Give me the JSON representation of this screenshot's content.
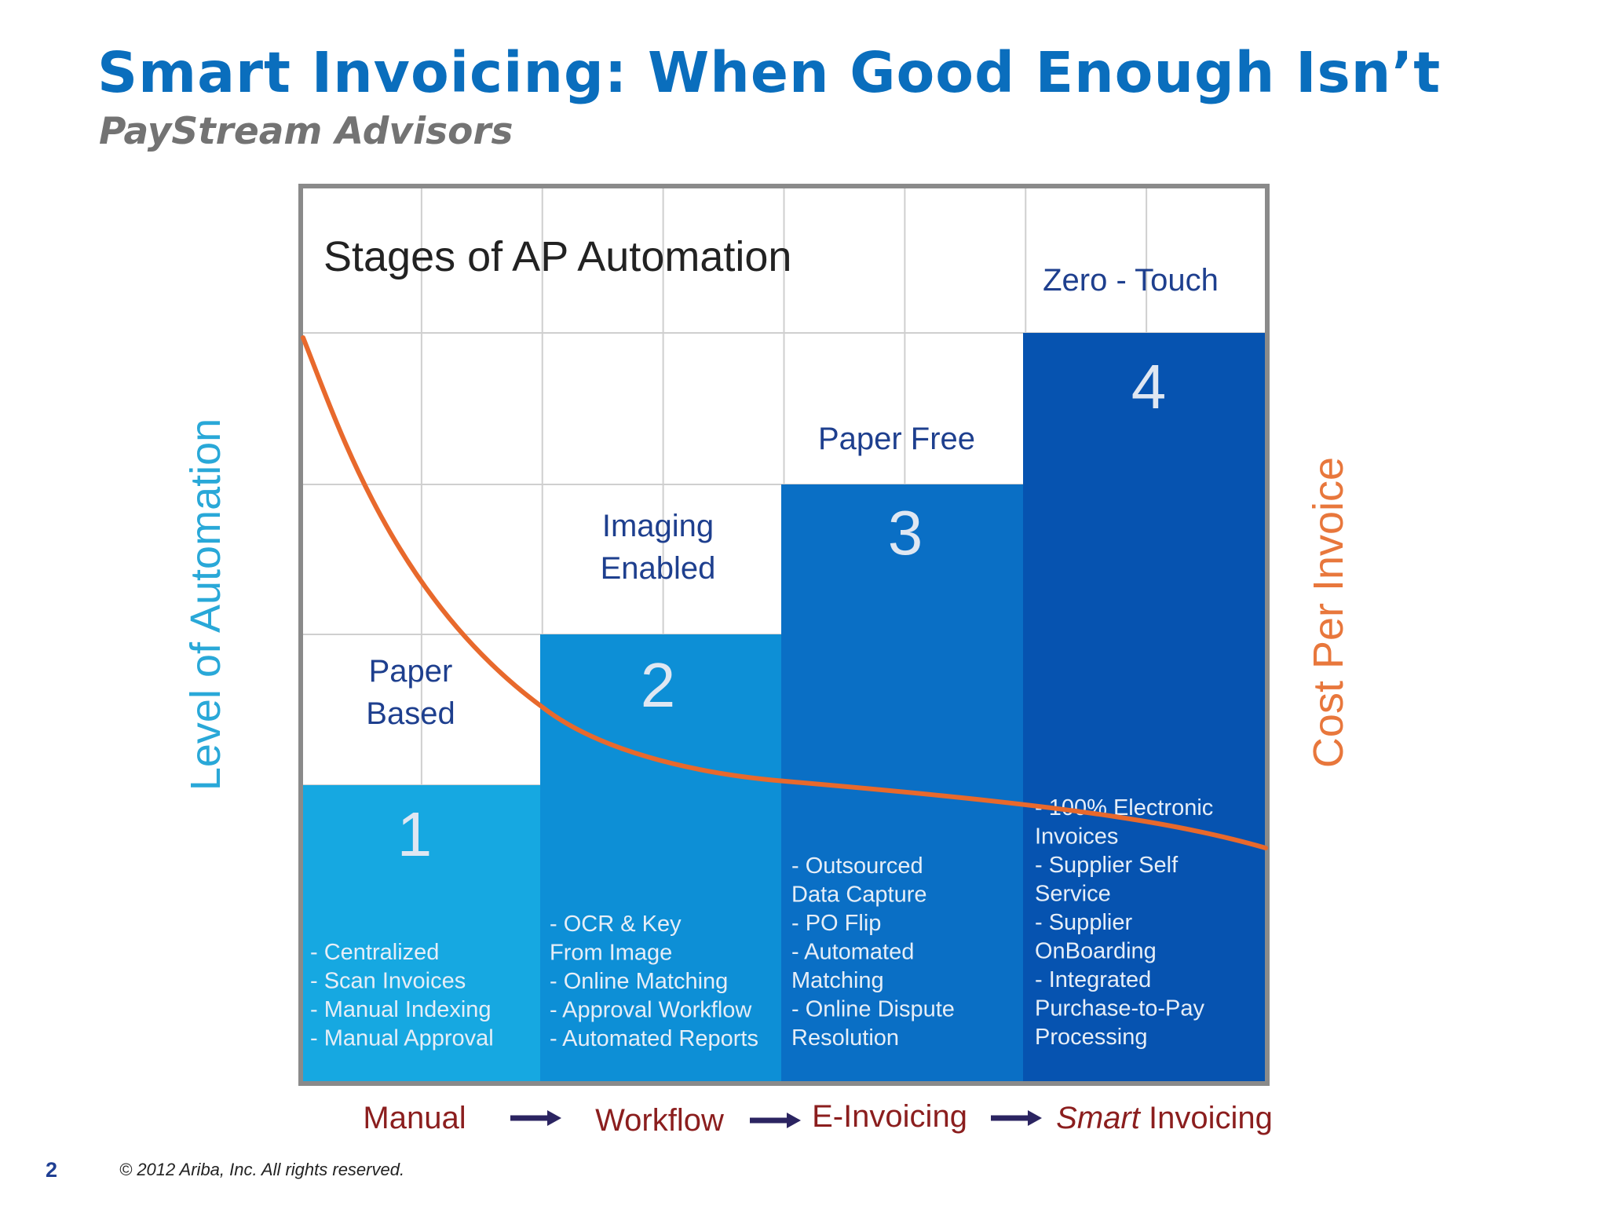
{
  "slide": {
    "title": "Smart Invoicing: When Good Enough Isn’t",
    "subtitle": "PayStream Advisors",
    "page_number": "2",
    "copyright": "© 2012 Ariba, Inc. All rights reserved.",
    "title_color": "#0a6ebd",
    "subtitle_color": "#737373"
  },
  "diagram": {
    "heading": "Stages of AP Automation",
    "y_axis_label": "Level of Automation",
    "y_axis_color": "#29a8d8",
    "right_axis_label": "Cost Per Invoice",
    "right_axis_color": "#e8773c",
    "curve_color": "#e8692c",
    "stage_label_color": "#1e3f8e",
    "flow_label_color": "#8b1e1e",
    "flow_arrow_color": "#2b2461",
    "stages": [
      {
        "number": "1",
        "name_lines": [
          "Paper",
          "Based"
        ],
        "color": "#16a8e1",
        "bullets": [
          "- Centralized",
          "- Scan Invoices",
          "- Manual Indexing",
          "- Manual Approval"
        ]
      },
      {
        "number": "2",
        "name_lines": [
          "Imaging",
          "Enabled"
        ],
        "color": "#0d8fd6",
        "bullets": [
          "- OCR & Key",
          "  From Image",
          "- Online Matching",
          "- Approval Workflow",
          "- Automated Reports"
        ]
      },
      {
        "number": "3",
        "name_lines": [
          "Paper Free"
        ],
        "color": "#0a6fc5",
        "bullets": [
          "- Outsourced",
          "  Data Capture",
          "- PO Flip",
          "- Automated",
          "  Matching",
          "- Online Dispute",
          "  Resolution"
        ]
      },
      {
        "number": "4",
        "name_lines": [
          "Zero - Touch"
        ],
        "color": "#0653b0",
        "bullets": [
          "- 100% Electronic",
          "  Invoices",
          "- Supplier Self",
          "  Service",
          "- Supplier",
          "  OnBoarding",
          "- Integrated",
          "  Purchase-to-Pay",
          "  Processing"
        ]
      }
    ],
    "flow": [
      {
        "text": "Manual"
      },
      {
        "text": "Workflow"
      },
      {
        "text": "E-Invoicing"
      },
      {
        "italic": "Smart",
        "text": " Invoicing"
      }
    ]
  }
}
